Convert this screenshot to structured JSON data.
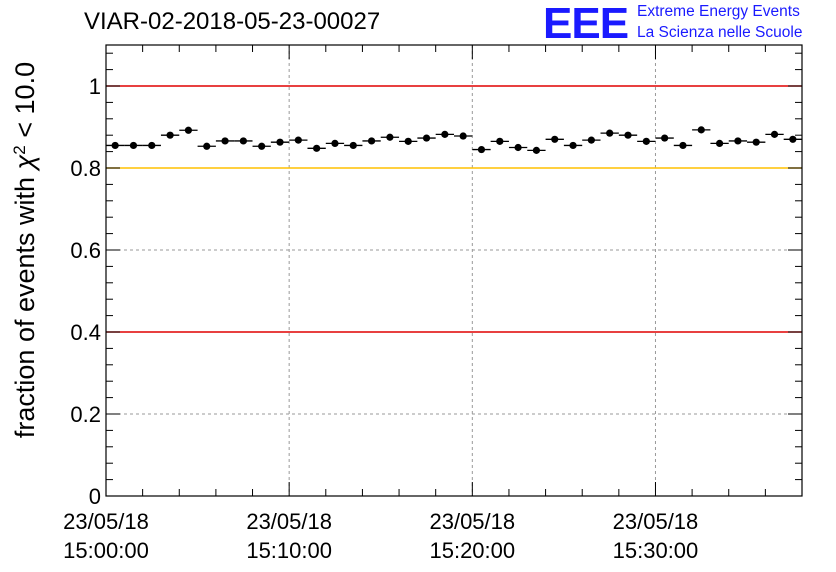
{
  "chart_data": {
    "type": "scatter",
    "title": "VIAR-02-2018-05-23-00027",
    "ylabel": "fraction of events with χ² < 10.0",
    "ylabel_parts": [
      "fraction of events with ",
      "χ",
      "2",
      " < 10.0"
    ],
    "ylim": [
      0,
      1.1
    ],
    "yticks": [
      0,
      0.2,
      0.4,
      0.6,
      0.8,
      1
    ],
    "ytick_labels": [
      "0",
      "0.2",
      "0.4",
      "0.6",
      "0.8",
      "1"
    ],
    "xlim_minutes": [
      0,
      38
    ],
    "xticks": [
      {
        "minute": 0,
        "date": "23/05/18",
        "time": "15:00:00"
      },
      {
        "minute": 10,
        "date": "23/05/18",
        "time": "15:10:00"
      },
      {
        "minute": 20,
        "date": "23/05/18",
        "time": "15:20:00"
      },
      {
        "minute": 30,
        "date": "23/05/18",
        "time": "15:30:00"
      }
    ],
    "grid": true,
    "reference_lines": [
      {
        "y": 1.0,
        "color": "#e00000"
      },
      {
        "y": 0.8,
        "color": "#ffc000"
      },
      {
        "y": 0.4,
        "color": "#e00000"
      }
    ],
    "x_bin_width_minutes": 1,
    "series": [
      {
        "color": "#000000",
        "x": [
          0.5,
          1.5,
          2.5,
          3.5,
          4.5,
          5.5,
          6.5,
          7.5,
          8.5,
          9.5,
          10.5,
          11.5,
          12.5,
          13.5,
          14.5,
          15.5,
          16.5,
          17.5,
          18.5,
          19.5,
          20.5,
          21.5,
          22.5,
          23.5,
          24.5,
          25.5,
          26.5,
          27.5,
          28.5,
          29.5,
          30.5,
          31.5,
          32.5,
          33.5,
          34.5,
          35.5,
          36.5,
          37.5
        ],
        "y": [
          0.855,
          0.855,
          0.855,
          0.88,
          0.892,
          0.853,
          0.866,
          0.866,
          0.853,
          0.863,
          0.868,
          0.848,
          0.86,
          0.855,
          0.866,
          0.875,
          0.865,
          0.873,
          0.882,
          0.878,
          0.845,
          0.865,
          0.85,
          0.843,
          0.87,
          0.855,
          0.868,
          0.885,
          0.88,
          0.865,
          0.873,
          0.855,
          0.893,
          0.86,
          0.866,
          0.863,
          0.882,
          0.87
        ]
      }
    ]
  },
  "logo": {
    "mark": "EEE",
    "line1": "Extreme Energy Events",
    "line2": "La Scienza nelle Scuole",
    "color": "#1a1aff"
  }
}
